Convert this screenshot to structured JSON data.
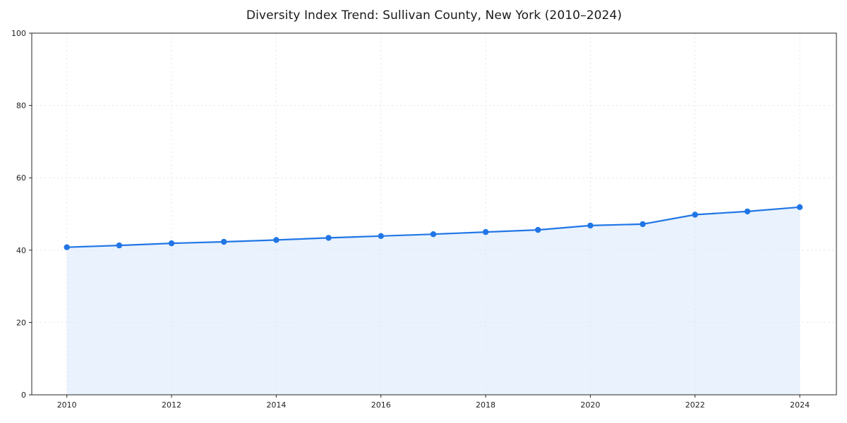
{
  "chart_data": {
    "type": "area",
    "title": "Diversity Index Trend: Sullivan County, New York (2010–2024)",
    "xlabel": "",
    "ylabel": "",
    "x": [
      2010,
      2011,
      2012,
      2013,
      2014,
      2015,
      2016,
      2017,
      2018,
      2019,
      2020,
      2021,
      2022,
      2023,
      2024
    ],
    "values": [
      40.8,
      41.3,
      41.9,
      42.3,
      42.8,
      43.4,
      43.9,
      44.4,
      45.0,
      45.6,
      46.8,
      47.2,
      49.8,
      50.7,
      51.9
    ],
    "series_name": "Diversity Index",
    "ylim": [
      0,
      100
    ],
    "xlim": [
      2009.33,
      2024.7
    ],
    "yticks": [
      0,
      20,
      40,
      60,
      80,
      100
    ],
    "xticks": [
      2010,
      2012,
      2014,
      2016,
      2018,
      2020,
      2022,
      2024
    ],
    "grid": true,
    "grid_style": "dashed",
    "grid_color": "#e4e4e4",
    "line_color": "#2176e6",
    "fill_color": "#dbe9fb",
    "frame_color": "#262626",
    "marker": "circle",
    "legend": "none"
  }
}
